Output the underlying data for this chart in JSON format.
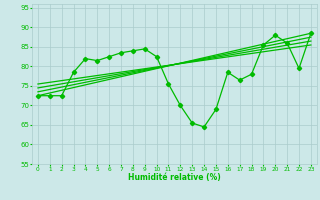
{
  "xlabel": "Humidité relative (%)",
  "bg_color": "#cce8e8",
  "grid_color": "#aacccc",
  "line_color": "#00bb00",
  "xlim": [
    -0.5,
    23.5
  ],
  "ylim": [
    55,
    96
  ],
  "yticks": [
    55,
    60,
    65,
    70,
    75,
    80,
    85,
    90,
    95
  ],
  "xticks": [
    0,
    1,
    2,
    3,
    4,
    5,
    6,
    7,
    8,
    9,
    10,
    11,
    12,
    13,
    14,
    15,
    16,
    17,
    18,
    19,
    20,
    21,
    22,
    23
  ],
  "curve_x": [
    0,
    1,
    2,
    3,
    4,
    5,
    6,
    7,
    8,
    9,
    10,
    11,
    12,
    13,
    14,
    15,
    16,
    17,
    18,
    19,
    20,
    21,
    22,
    23
  ],
  "curve_y": [
    72.5,
    72.5,
    72.5,
    78.5,
    82,
    81.5,
    82.5,
    83.5,
    84,
    84.5,
    82.5,
    75.5,
    70,
    65.5,
    64.5,
    69,
    78.5,
    76.5,
    78,
    85.5,
    88,
    86,
    79.5,
    88.5
  ],
  "line1_x": [
    0,
    23
  ],
  "line1_y": [
    72.5,
    88.5
  ],
  "line2_x": [
    0,
    23
  ],
  "line2_y": [
    73.5,
    87.5
  ],
  "line3_x": [
    0,
    23
  ],
  "line3_y": [
    74.5,
    86.5
  ],
  "line4_x": [
    0,
    23
  ],
  "line4_y": [
    75.5,
    85.5
  ]
}
